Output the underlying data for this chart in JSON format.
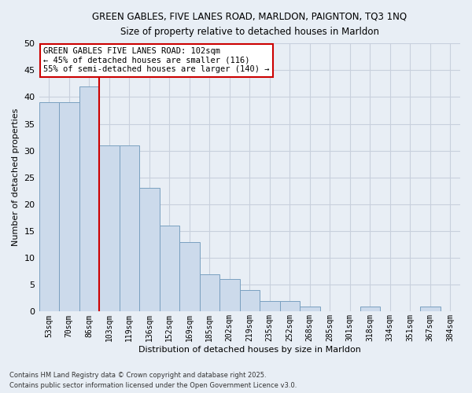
{
  "title1": "GREEN GABLES, FIVE LANES ROAD, MARLDON, PAIGNTON, TQ3 1NQ",
  "title2": "Size of property relative to detached houses in Marldon",
  "xlabel": "Distribution of detached houses by size in Marldon",
  "ylabel": "Number of detached properties",
  "categories": [
    "53sqm",
    "70sqm",
    "86sqm",
    "103sqm",
    "119sqm",
    "136sqm",
    "152sqm",
    "169sqm",
    "185sqm",
    "202sqm",
    "219sqm",
    "235sqm",
    "252sqm",
    "268sqm",
    "285sqm",
    "301sqm",
    "318sqm",
    "334sqm",
    "351sqm",
    "367sqm",
    "384sqm"
  ],
  "values": [
    39,
    39,
    42,
    31,
    31,
    23,
    16,
    13,
    7,
    6,
    4,
    2,
    2,
    1,
    0,
    0,
    1,
    0,
    0,
    1,
    0
  ],
  "bar_color": "#ccdaeb",
  "bar_edge_color": "#7aa0c0",
  "bar_width": 1.0,
  "vline_color": "#cc0000",
  "annotation_title": "GREEN GABLES FIVE LANES ROAD: 102sqm",
  "annotation_line1": "← 45% of detached houses are smaller (116)",
  "annotation_line2": "55% of semi-detached houses are larger (140) →",
  "annotation_box_color": "#ffffff",
  "annotation_box_edge": "#cc0000",
  "ylim": [
    0,
    50
  ],
  "yticks": [
    0,
    5,
    10,
    15,
    20,
    25,
    30,
    35,
    40,
    45,
    50
  ],
  "grid_color": "#c8d0dd",
  "background_color": "#e8eef5",
  "footnote1": "Contains HM Land Registry data © Crown copyright and database right 2025.",
  "footnote2": "Contains public sector information licensed under the Open Government Licence v3.0."
}
